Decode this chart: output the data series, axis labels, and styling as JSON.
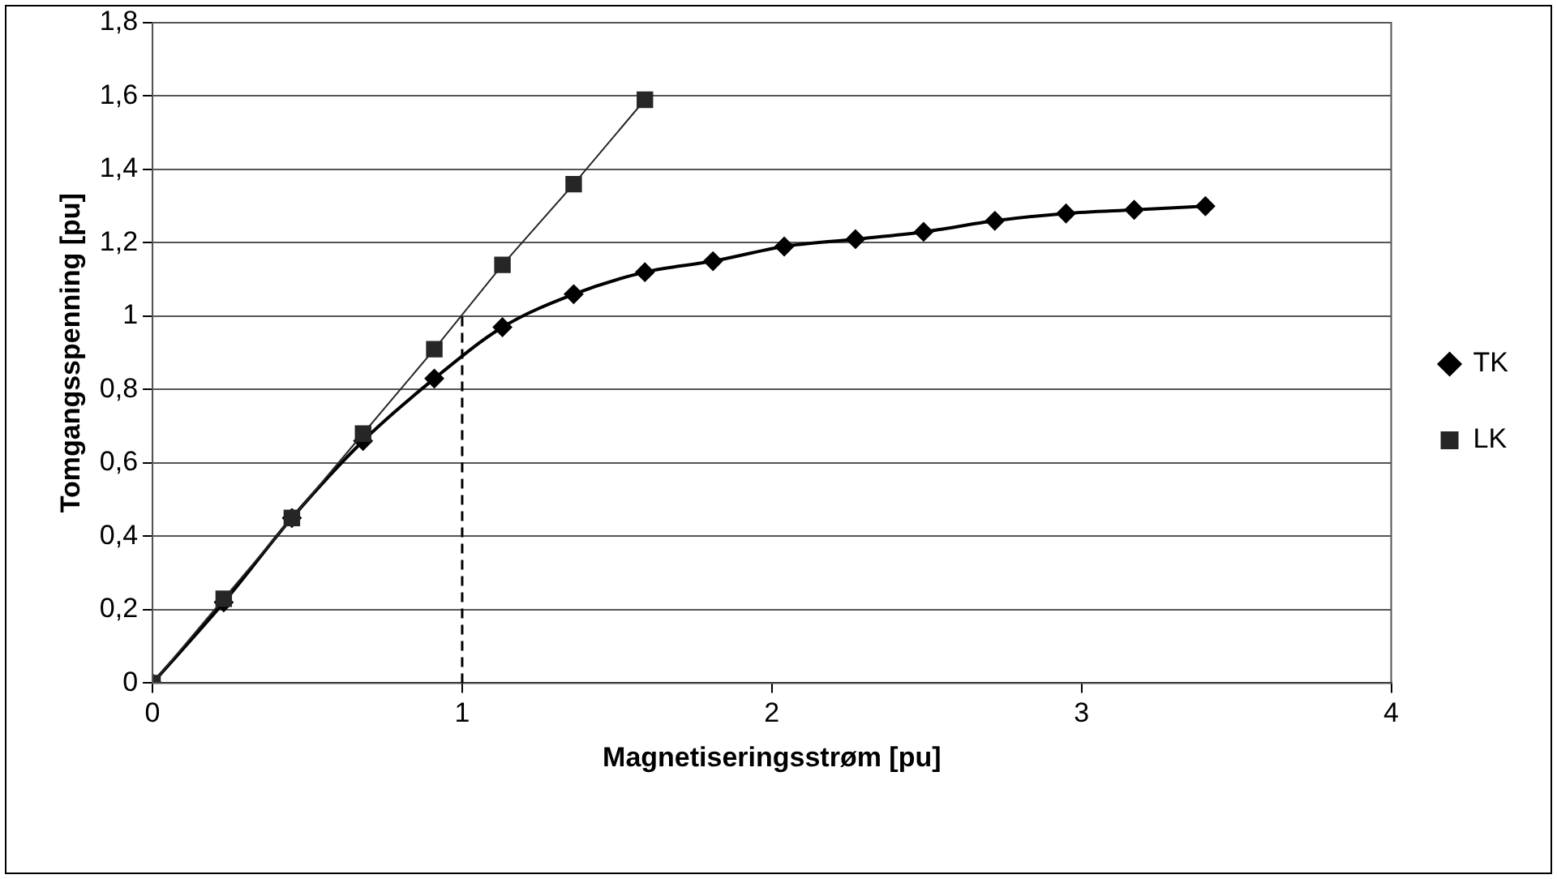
{
  "chart_data": {
    "type": "line",
    "xlabel": "Magnetiseringsstrøm [pu]",
    "ylabel": "Tomgangsspenning [pu]",
    "xlim": [
      0,
      4
    ],
    "xticks": [
      0,
      1,
      2,
      3,
      4
    ],
    "ylim": [
      0,
      1.8
    ],
    "yticks": [
      0,
      {
        "value": 0.2,
        "label": "0,2"
      },
      {
        "value": 0.4,
        "label": "0,4"
      },
      {
        "value": 0.6,
        "label": "0,6"
      },
      {
        "value": 0.8,
        "label": "0,8"
      },
      1,
      {
        "value": 1.2,
        "label": "1,2"
      },
      {
        "value": 1.4,
        "label": "1,4"
      },
      {
        "value": 1.6,
        "label": "1,6"
      },
      {
        "value": 1.8,
        "label": "1,8"
      }
    ],
    "grid": "y",
    "legend": "right",
    "series": [
      {
        "name": "TK",
        "color": "#000000",
        "marker": "diamond",
        "x": [
          0,
          0.23,
          0.45,
          0.68,
          0.91,
          1.13,
          1.36,
          1.59,
          1.81,
          2.04,
          2.27,
          2.49,
          2.72,
          2.95,
          3.17,
          3.4
        ],
        "values": [
          0,
          0.22,
          0.45,
          0.66,
          0.83,
          0.97,
          1.06,
          1.12,
          1.15,
          1.19,
          1.21,
          1.23,
          1.26,
          1.28,
          1.29,
          1.3
        ]
      },
      {
        "name": "LK",
        "color": "#262626",
        "marker": "square",
        "x": [
          0,
          0.23,
          0.45,
          0.68,
          0.91,
          1.13,
          1.36,
          1.59
        ],
        "values": [
          0,
          0.23,
          0.45,
          0.68,
          0.91,
          1.14,
          1.36,
          1.59
        ]
      }
    ],
    "ref_lines": [
      {
        "axis": "x",
        "value": 1,
        "color": "#000000",
        "line_style": "dashed"
      }
    ]
  }
}
